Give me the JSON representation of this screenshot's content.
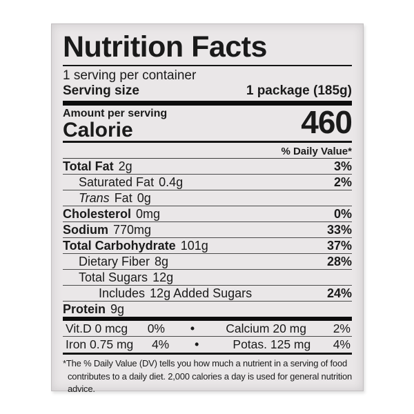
{
  "colors": {
    "paper": "#eae7e8",
    "ink": "#1a1a1a",
    "page_background": "#ffffff"
  },
  "label": {
    "title": "Nutrition Facts",
    "servings_per_container": "1 serving per container",
    "serving_size_label": "Serving size",
    "serving_size_value": "1 package (185g)",
    "amount_per_serving": "Amount per serving",
    "calories_label": "Calorie",
    "calories_value": "460",
    "daily_value_header": "% Daily Value*",
    "nutrients": [
      {
        "name": "Total Fat",
        "amount": "2g",
        "percent": "3%",
        "bold": true,
        "indent": 0
      },
      {
        "name": "Saturated Fat",
        "amount": "0.4g",
        "percent": "2%",
        "bold": false,
        "indent": 1
      },
      {
        "name": "Trans",
        "name_italic": true,
        "name_suffix": "Fat",
        "amount": "0g",
        "percent": "",
        "bold": false,
        "indent": 1
      },
      {
        "name": "Cholesterol",
        "amount": "0mg",
        "percent": "0%",
        "bold": true,
        "indent": 0
      },
      {
        "name": "Sodium",
        "amount": "770mg",
        "percent": "33%",
        "bold": true,
        "indent": 0
      },
      {
        "name": "Total Carbohydrate",
        "amount": "101g",
        "percent": "37%",
        "bold": true,
        "indent": 0
      },
      {
        "name": "Dietary Fiber",
        "amount": "8g",
        "percent": "28%",
        "bold": false,
        "indent": 1
      },
      {
        "name": "Total Sugars",
        "amount": "12g",
        "percent": "",
        "bold": false,
        "indent": 1
      },
      {
        "name": "Includes",
        "amount": "12g Added Sugars",
        "percent": "24%",
        "bold": false,
        "indent": 2
      },
      {
        "name": "Protein",
        "amount": "9g",
        "percent": "",
        "bold": true,
        "indent": 0,
        "last": true
      }
    ],
    "micronutrient_bullet": "•",
    "micronutrient_rows": [
      {
        "left_name": "Vit.D 0 mcg",
        "left_percent": "0%",
        "right_name": "Calcium 20 mg",
        "right_percent": "2%"
      },
      {
        "left_name": "Iron 0.75 mg",
        "left_percent": "4%",
        "right_name": "Potas. 125 mg",
        "right_percent": "4%"
      }
    ],
    "footnote": "*The % Daily Value (DV) tells you how much a nutrient in a serving of food contributes to a daily diet. 2,000 calories a day is used for general nutrition advice."
  }
}
